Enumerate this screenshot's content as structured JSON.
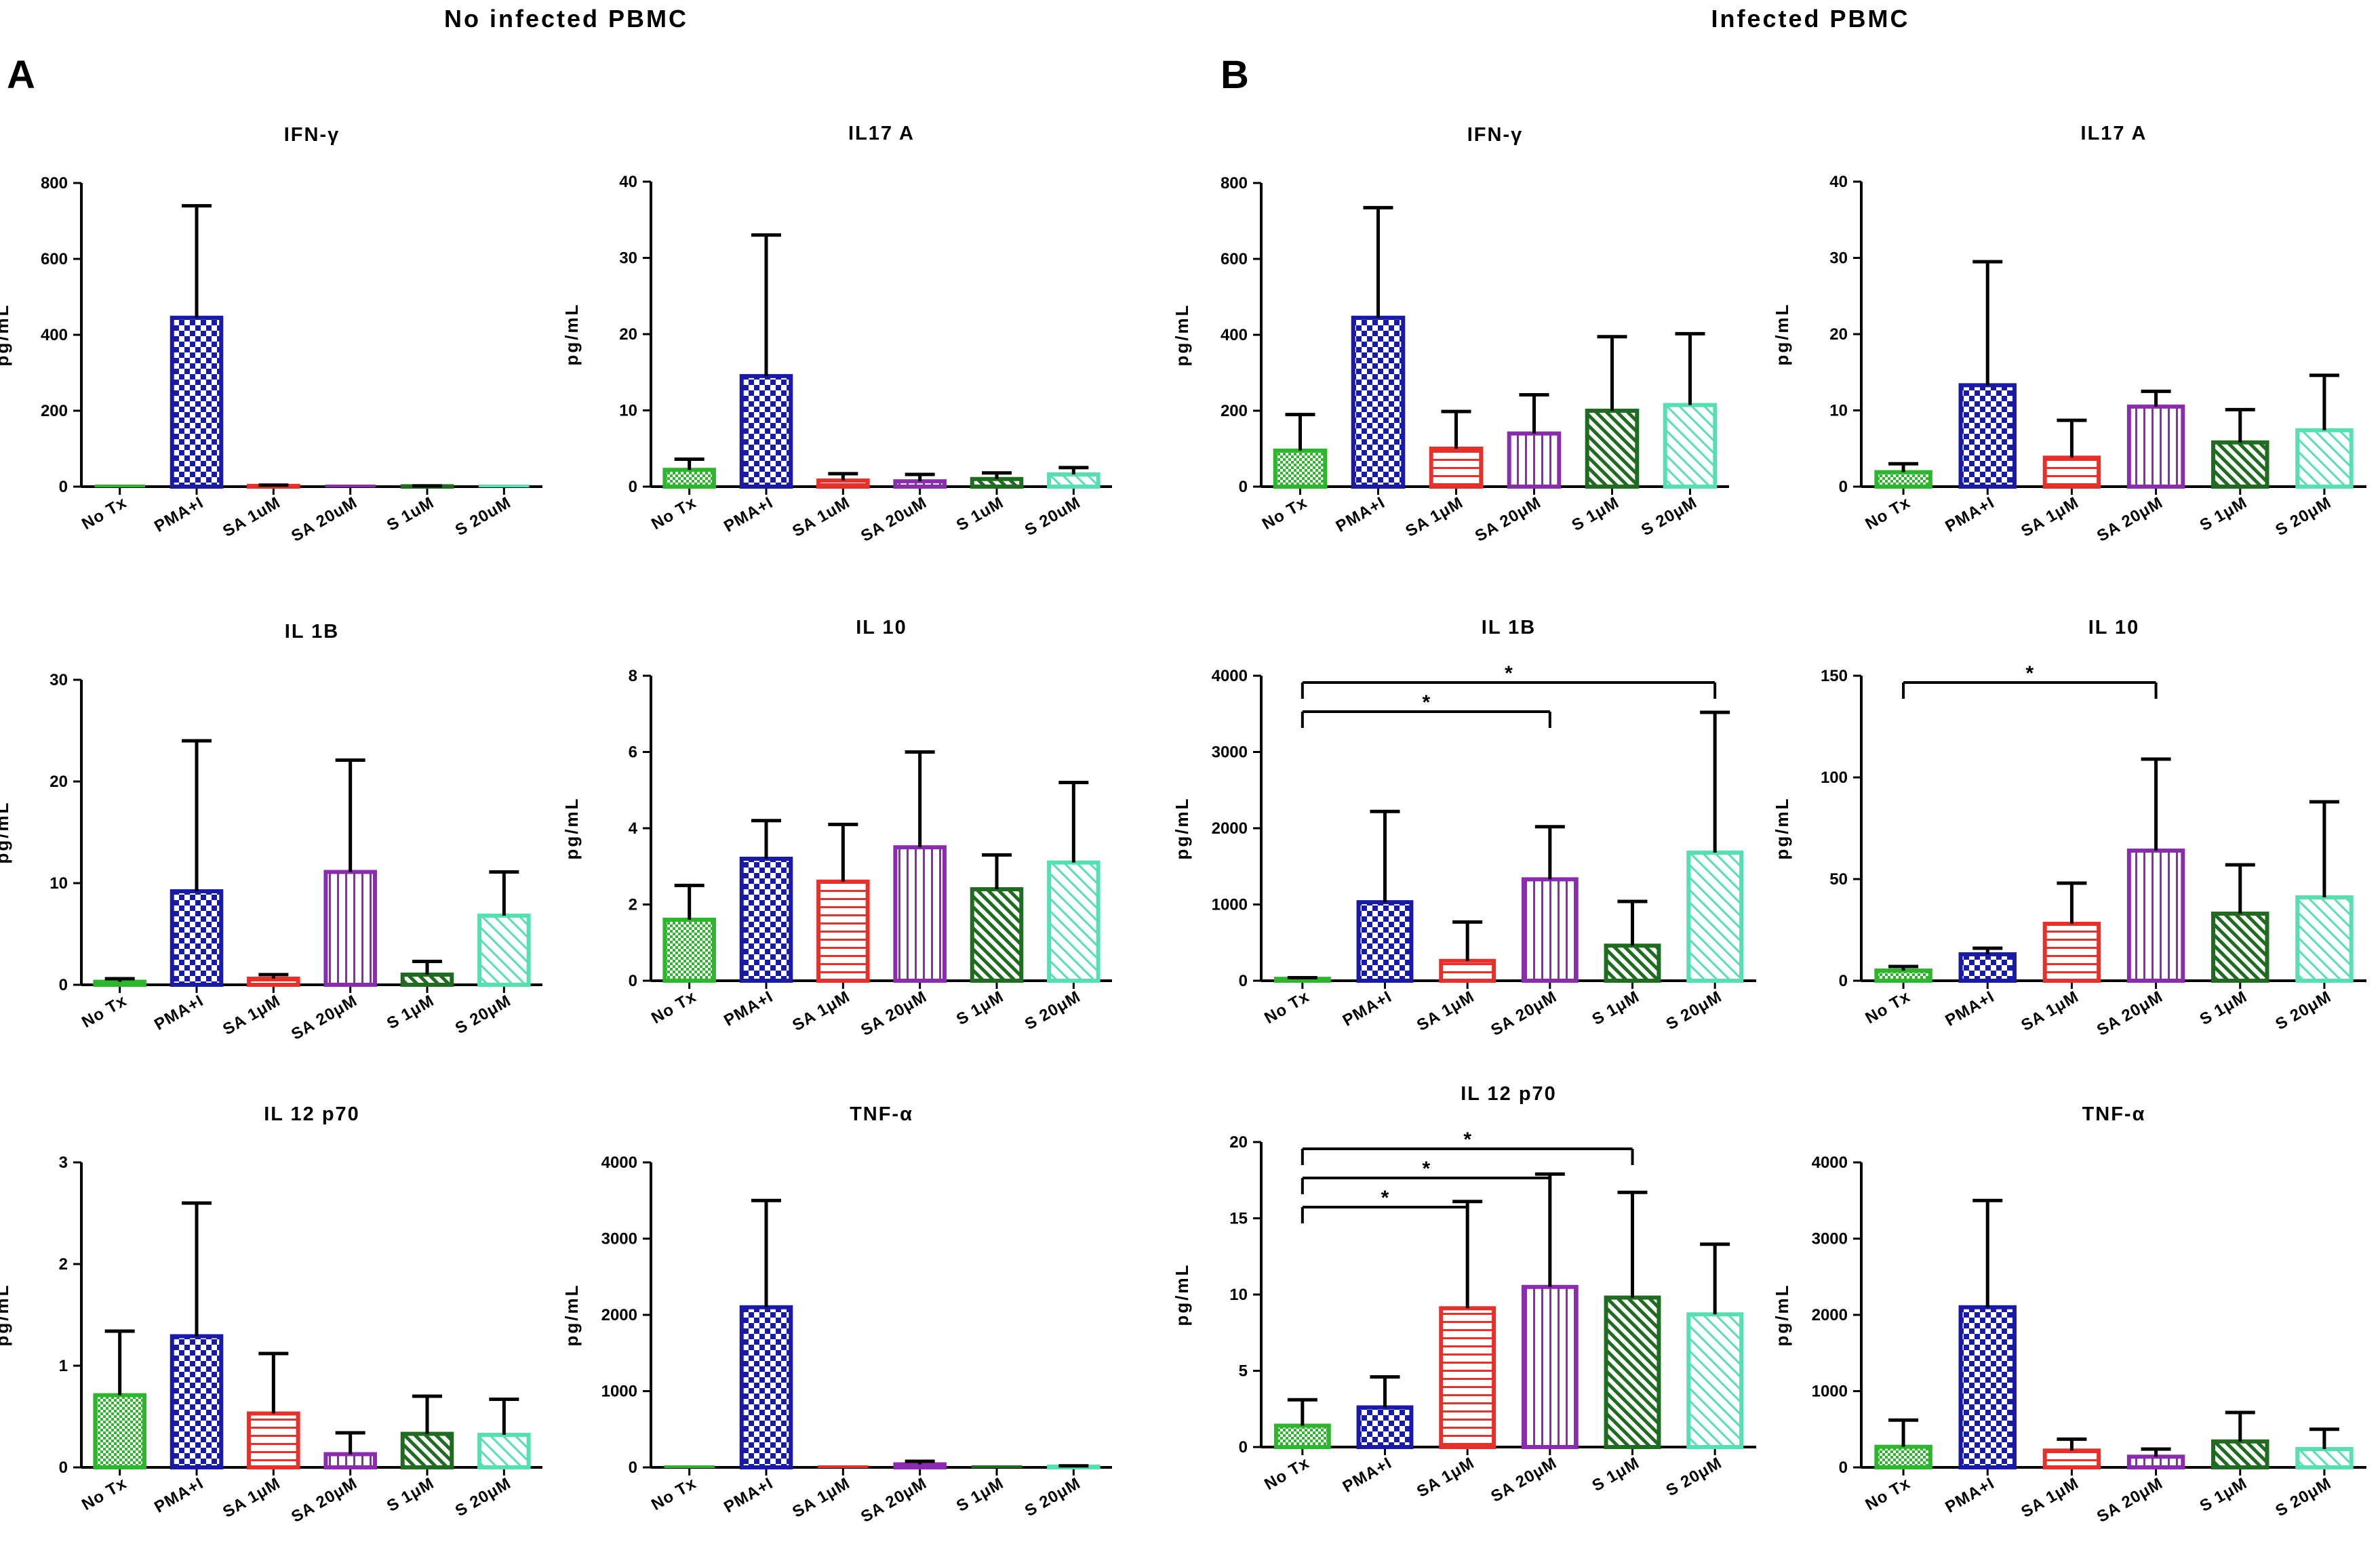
{
  "panels": [
    {
      "title": "No infected PBMC",
      "label": "A"
    },
    {
      "title": "Infected PBMC",
      "label": "B"
    }
  ],
  "series_colors": [
    "#2bb62b",
    "#1a1aa8",
    "#e8302a",
    "#8b2bb0",
    "#1f6b1f",
    "#55e0b0"
  ],
  "chart_data": [
    {
      "id": "A1",
      "panel": "A",
      "type": "bar",
      "title": "IFN-γ",
      "ylabel": "pg/mL",
      "ylim": [
        0,
        800
      ],
      "yticks": [
        0,
        200,
        400,
        600,
        800
      ],
      "categories": [
        "No Tx",
        "PMA+I",
        "SA 1uM",
        "SA 20uM",
        "S 1uM",
        "S 20uM"
      ],
      "values": [
        0,
        445,
        2,
        0,
        1,
        0
      ],
      "errors": [
        0,
        295,
        2,
        0,
        1,
        0
      ],
      "significance": []
    },
    {
      "id": "A2",
      "panel": "A",
      "type": "bar",
      "title": "IL17 A",
      "ylabel": "pg/mL",
      "ylim": [
        0,
        40
      ],
      "yticks": [
        0,
        10,
        20,
        30,
        40
      ],
      "categories": [
        "No Tx",
        "PMA+I",
        "SA 1uM",
        "SA 20uM",
        "S 1uM",
        "S 20uM"
      ],
      "values": [
        2.2,
        14.5,
        0.8,
        0.7,
        1.0,
        1.6
      ],
      "errors": [
        1.4,
        18.5,
        0.9,
        0.9,
        0.8,
        0.9
      ],
      "significance": []
    },
    {
      "id": "A3",
      "panel": "A",
      "type": "bar",
      "title": "IL 1B",
      "ylabel": "pg/mL",
      "ylim": [
        0,
        30
      ],
      "yticks": [
        0,
        10,
        20,
        30
      ],
      "categories": [
        "No Tx",
        "PMA+I",
        "SA 1μM",
        "SA 20μM",
        "S 1μM",
        "S 20μM"
      ],
      "values": [
        0.3,
        9.2,
        0.6,
        11.1,
        1.0,
        6.8
      ],
      "errors": [
        0.3,
        14.8,
        0.4,
        11.0,
        1.3,
        4.3
      ],
      "significance": []
    },
    {
      "id": "A4",
      "panel": "A",
      "type": "bar",
      "title": "IL 10",
      "ylabel": "pg/mL",
      "ylim": [
        0,
        8
      ],
      "yticks": [
        0,
        2,
        4,
        6,
        8
      ],
      "categories": [
        "No Tx",
        "PMA+I",
        "SA 1μM",
        "SA 20μM",
        "S 1μM",
        "S 20μM"
      ],
      "values": [
        1.6,
        3.2,
        2.6,
        3.5,
        2.4,
        3.1
      ],
      "errors": [
        0.9,
        1.0,
        1.5,
        2.5,
        0.9,
        2.1
      ],
      "significance": []
    },
    {
      "id": "A5",
      "panel": "A",
      "type": "bar",
      "title": "IL 12 p70",
      "ylabel": "pg/mL",
      "ylim": [
        0,
        3
      ],
      "yticks": [
        0,
        1,
        2,
        3
      ],
      "categories": [
        "No Tx",
        "PMA+I",
        "SA 1μM",
        "SA 20μM",
        "S 1μM",
        "S 20μM"
      ],
      "values": [
        0.71,
        1.29,
        0.53,
        0.13,
        0.33,
        0.32
      ],
      "errors": [
        0.63,
        1.31,
        0.59,
        0.21,
        0.37,
        0.35
      ],
      "significance": []
    },
    {
      "id": "A6",
      "panel": "A",
      "type": "bar",
      "title": "TNF-α",
      "ylabel": "pg/mL",
      "ylim": [
        0,
        4000
      ],
      "yticks": [
        0,
        1000,
        2000,
        3000,
        4000
      ],
      "categories": [
        "No Tx",
        "PMA+I",
        "SA 1μM",
        "SA 20μM",
        "S 1μM",
        "S 20μM"
      ],
      "values": [
        0,
        2100,
        0,
        40,
        0,
        10
      ],
      "errors": [
        0,
        1400,
        0,
        40,
        0,
        10
      ],
      "significance": []
    },
    {
      "id": "B1",
      "panel": "B",
      "type": "bar",
      "title": "IFN-γ",
      "ylabel": "pg/mL",
      "ylim": [
        0,
        800
      ],
      "yticks": [
        0,
        200,
        400,
        600,
        800
      ],
      "categories": [
        "No Tx",
        "PMA+I",
        "SA 1μM",
        "SA 20μM",
        "S 1μM",
        "S 20μM"
      ],
      "values": [
        95,
        445,
        100,
        140,
        200,
        215
      ],
      "errors": [
        95,
        290,
        98,
        102,
        195,
        188
      ],
      "significance": []
    },
    {
      "id": "B2",
      "panel": "B",
      "type": "bar",
      "title": "IL17 A",
      "ylabel": "pg/mL",
      "ylim": [
        0,
        40
      ],
      "yticks": [
        0,
        10,
        20,
        30,
        40
      ],
      "categories": [
        "No Tx",
        "PMA+I",
        "SA 1μM",
        "SA 20μM",
        "S 1μM",
        "S 20μM"
      ],
      "values": [
        1.9,
        13.3,
        3.8,
        10.5,
        5.8,
        7.4
      ],
      "errors": [
        1.1,
        16.2,
        4.9,
        2.0,
        4.3,
        7.2
      ],
      "significance": []
    },
    {
      "id": "B3",
      "panel": "B",
      "type": "bar",
      "title": "IL 1B",
      "ylabel": "pg/mL",
      "ylim": [
        0,
        4000
      ],
      "yticks": [
        0,
        1000,
        2000,
        3000,
        4000
      ],
      "categories": [
        "No Tx",
        "PMA+I",
        "SA 1μM",
        "SA 20μM",
        "S 1μM",
        "S 20μM"
      ],
      "values": [
        25,
        1030,
        260,
        1330,
        460,
        1680
      ],
      "errors": [
        15,
        1190,
        510,
        690,
        580,
        1840
      ],
      "significance": [
        {
          "from": 0,
          "to": 5,
          "level": 0,
          "label": "*"
        },
        {
          "from": 0,
          "to": 3,
          "level": 1,
          "label": "*"
        }
      ]
    },
    {
      "id": "B4",
      "panel": "B",
      "type": "bar",
      "title": "IL 10",
      "ylabel": "pg/mL",
      "ylim": [
        0,
        150
      ],
      "yticks": [
        0,
        50,
        100,
        150
      ],
      "categories": [
        "No Tx",
        "PMA+I",
        "SA 1μM",
        "SA 20μM",
        "S 1μM",
        "S 20μM"
      ],
      "values": [
        5,
        13,
        28,
        64,
        33,
        41
      ],
      "errors": [
        2,
        3,
        20,
        45,
        24,
        47
      ],
      "significance": [
        {
          "from": 0,
          "to": 3,
          "level": 0,
          "label": "*"
        }
      ]
    },
    {
      "id": "B5",
      "panel": "B",
      "type": "bar",
      "title": "IL 12 p70",
      "ylabel": "pg/mL",
      "ylim": [
        0,
        20
      ],
      "yticks": [
        0,
        5,
        10,
        15,
        20
      ],
      "categories": [
        "No Tx",
        "PMA+I",
        "SA 1μM",
        "SA 20μM",
        "S 1μM",
        "S 20μM"
      ],
      "values": [
        1.4,
        2.6,
        9.1,
        10.5,
        9.8,
        8.7
      ],
      "errors": [
        1.7,
        2.0,
        7.0,
        7.4,
        6.9,
        4.6
      ],
      "significance": [
        {
          "from": 0,
          "to": 4,
          "level": 0,
          "label": "*"
        },
        {
          "from": 0,
          "to": 3,
          "level": 1,
          "label": "*"
        },
        {
          "from": 0,
          "to": 2,
          "level": 2,
          "label": "*"
        }
      ]
    },
    {
      "id": "B6",
      "panel": "B",
      "type": "bar",
      "title": "TNF-α",
      "ylabel": "pg/mL",
      "ylim": [
        0,
        4000
      ],
      "yticks": [
        0,
        1000,
        2000,
        3000,
        4000
      ],
      "categories": [
        "No Tx",
        "PMA+I",
        "SA 1μM",
        "SA 20μM",
        "S 1μM",
        "S 20μM"
      ],
      "values": [
        270,
        2100,
        220,
        140,
        340,
        240
      ],
      "errors": [
        350,
        1400,
        150,
        100,
        380,
        260
      ],
      "significance": []
    }
  ]
}
